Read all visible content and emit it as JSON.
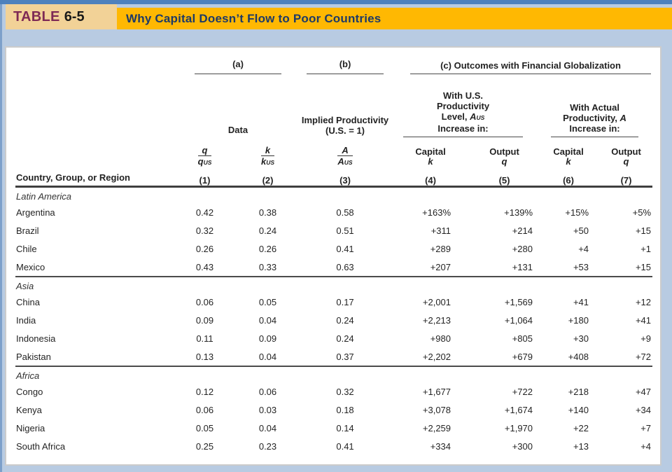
{
  "page": {
    "table_label": "TABLE",
    "table_number": "6-5",
    "title": "Why Capital Doesn’t Flow to Poor Countries"
  },
  "colors": {
    "banner_orange": "#ffb802",
    "tag_tan": "#f2d297",
    "tag_label_maroon": "#7e2a55",
    "title_navy": "#1e3a67",
    "page_background_blue": "#b8cbe2",
    "top_strip_blue": "#4e81bd"
  },
  "table": {
    "group_a": "(a)",
    "group_b": "(b)",
    "group_c": "(c) Outcomes with Financial Globalization",
    "data_label": "Data",
    "implied": {
      "line1": "Implied Productivity",
      "line2": "(U.S. = 1)"
    },
    "with_us": {
      "line1": "With U.S.",
      "line2": "Productivity",
      "line3_pre": "Level, ",
      "line3_var": "A",
      "line3_sub": "US",
      "line4": "Increase in:"
    },
    "with_actual": {
      "line1": "With Actual",
      "line2_pre": "Productivity, ",
      "line2_var": "A",
      "line3": "Increase in:"
    },
    "row_header": "Country, Group, or Region",
    "columns": [
      {
        "num": "q",
        "den": "q",
        "den_sub": "US",
        "number": "(1)"
      },
      {
        "num": "k",
        "den": "k",
        "den_sub": "US",
        "number": "(2)"
      },
      {
        "num": "A",
        "den": "A",
        "den_sub": "US",
        "number": "(3)"
      },
      {
        "label": "Capital",
        "symbol": "k",
        "number": "(4)"
      },
      {
        "label": "Output",
        "symbol": "q",
        "number": "(5)"
      },
      {
        "label": "Capital",
        "symbol": "k",
        "number": "(6)"
      },
      {
        "label": "Output",
        "symbol": "q",
        "number": "(7)"
      }
    ],
    "sections": [
      {
        "region": "Latin America",
        "rows": [
          {
            "country": "Argentina",
            "values": [
              "0.42",
              "0.38",
              "0.58",
              "+163%",
              "+139%",
              "+15%",
              "+5%"
            ]
          },
          {
            "country": "Brazil",
            "values": [
              "0.32",
              "0.24",
              "0.51",
              "+311",
              "+214",
              "+50",
              "+15"
            ]
          },
          {
            "country": "Chile",
            "values": [
              "0.26",
              "0.26",
              "0.41",
              "+289",
              "+280",
              "+4",
              "+1"
            ]
          },
          {
            "country": "Mexico",
            "values": [
              "0.43",
              "0.33",
              "0.63",
              "+207",
              "+131",
              "+53",
              "+15"
            ]
          }
        ]
      },
      {
        "region": "Asia",
        "rows": [
          {
            "country": "China",
            "values": [
              "0.06",
              "0.05",
              "0.17",
              "+2,001",
              "+1,569",
              "+41",
              "+12"
            ]
          },
          {
            "country": "India",
            "values": [
              "0.09",
              "0.04",
              "0.24",
              "+2,213",
              "+1,064",
              "+180",
              "+41"
            ]
          },
          {
            "country": "Indonesia",
            "values": [
              "0.11",
              "0.09",
              "0.24",
              "+980",
              "+805",
              "+30",
              "+9"
            ]
          },
          {
            "country": "Pakistan",
            "values": [
              "0.13",
              "0.04",
              "0.37",
              "+2,202",
              "+679",
              "+408",
              "+72"
            ]
          }
        ]
      },
      {
        "region": "Africa",
        "rows": [
          {
            "country": "Congo",
            "values": [
              "0.12",
              "0.06",
              "0.32",
              "+1,677",
              "+722",
              "+218",
              "+47"
            ]
          },
          {
            "country": "Kenya",
            "values": [
              "0.06",
              "0.03",
              "0.18",
              "+3,078",
              "+1,674",
              "+140",
              "+34"
            ]
          },
          {
            "country": "Nigeria",
            "values": [
              "0.05",
              "0.04",
              "0.14",
              "+2,259",
              "+1,970",
              "+22",
              "+7"
            ]
          },
          {
            "country": "South Africa",
            "values": [
              "0.25",
              "0.23",
              "0.41",
              "+334",
              "+300",
              "+13",
              "+4"
            ]
          }
        ]
      }
    ]
  }
}
